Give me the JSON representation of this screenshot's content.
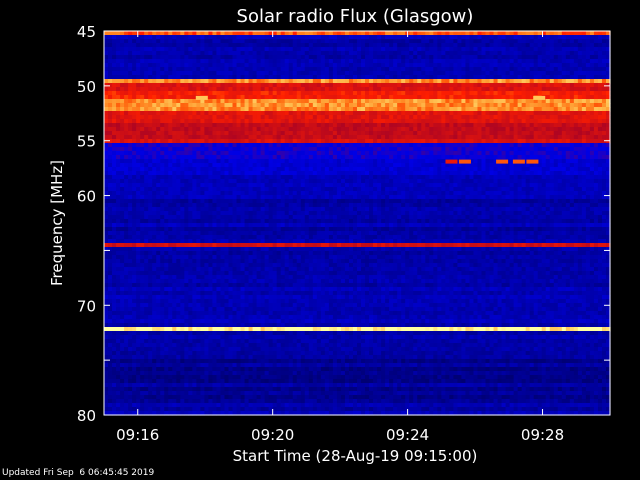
{
  "chart_data": {
    "type": "heatmap",
    "title": "Solar radio Flux (Glasgow)",
    "xlabel": "Start Time (28-Aug-19 09:15:00)",
    "ylabel": "Frequency [MHz]",
    "x_ticks": [
      "09:16",
      "09:20",
      "09:24",
      "09:28"
    ],
    "x_tick_minutes": [
      1,
      5,
      9,
      13
    ],
    "x_range_minutes": [
      0,
      15
    ],
    "y_ticks": [
      45,
      50,
      55,
      60,
      65,
      70,
      75,
      80
    ],
    "y_tick_labels": [
      "45",
      "50",
      "55",
      "60",
      "",
      "70",
      "",
      "80"
    ],
    "y_range_mhz": [
      45,
      80
    ],
    "colormap": "red-temperature on blue background",
    "bands": [
      {
        "from_mhz": 45.0,
        "to_mhz": 45.3,
        "intensity": 0.85
      },
      {
        "from_mhz": 49.3,
        "to_mhz": 49.6,
        "intensity": 0.9
      },
      {
        "from_mhz": 49.9,
        "to_mhz": 50.6,
        "intensity": 0.7
      },
      {
        "from_mhz": 50.6,
        "to_mhz": 51.2,
        "intensity": 0.78
      },
      {
        "from_mhz": 51.2,
        "to_mhz": 52.2,
        "intensity": 0.9
      },
      {
        "from_mhz": 52.2,
        "to_mhz": 53.5,
        "intensity": 0.72
      },
      {
        "from_mhz": 53.5,
        "to_mhz": 54.8,
        "intensity": 0.64
      },
      {
        "from_mhz": 54.8,
        "to_mhz": 55.3,
        "intensity": 0.7
      },
      {
        "from_mhz": 55.3,
        "to_mhz": 56.5,
        "intensity": 0.36
      },
      {
        "from_mhz": 56.5,
        "to_mhz": 58.0,
        "intensity": 0.3
      },
      {
        "from_mhz": 58.0,
        "to_mhz": 60.3,
        "intensity": 0.24
      },
      {
        "from_mhz": 64.2,
        "to_mhz": 64.6,
        "intensity": 0.68
      },
      {
        "from_mhz": 72.0,
        "to_mhz": 72.4,
        "intensity": 1.0
      },
      {
        "from_mhz": 71.8,
        "to_mhz": 72.0,
        "intensity": 0.75
      }
    ],
    "bursts": [
      {
        "t_min": 10.3,
        "f_mhz": 56.9,
        "intensity": 0.75
      },
      {
        "t_min": 10.7,
        "f_mhz": 56.9,
        "intensity": 0.85
      },
      {
        "t_min": 11.8,
        "f_mhz": 56.9,
        "intensity": 0.85
      },
      {
        "t_min": 12.3,
        "f_mhz": 56.9,
        "intensity": 0.85
      },
      {
        "t_min": 12.7,
        "f_mhz": 56.9,
        "intensity": 0.85
      },
      {
        "t_min": 2.9,
        "f_mhz": 51.1,
        "intensity": 0.95
      },
      {
        "t_min": 12.9,
        "f_mhz": 51.1,
        "intensity": 0.95
      }
    ]
  },
  "footer": "Updated Fri Sep  6 06:45:45 2019"
}
